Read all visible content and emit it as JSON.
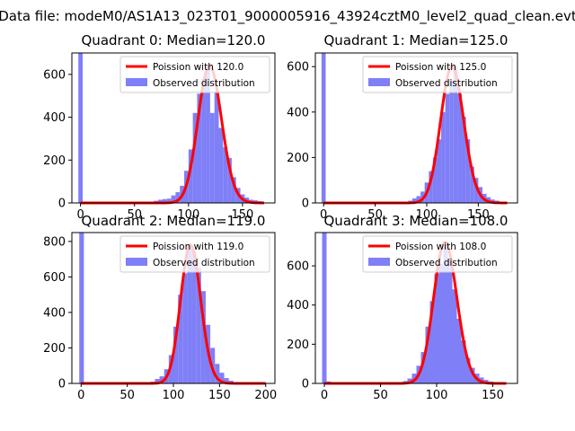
{
  "figure": {
    "suptitle": "Data file: modeM0/AS1A13_023T01_9000005916_43924cztM0_level2_quad_clean.evt"
  },
  "colors": {
    "hist_fill": "#7f7ff7",
    "poisson_line": "#ff0000",
    "axes": "#000000",
    "legend_border": "#cccccc"
  },
  "chart_data": [
    {
      "type": "bar",
      "title": "Quadrant 0: Median=120.0",
      "xlim": [
        -8,
        180
      ],
      "ylim": [
        0,
        700
      ],
      "xticks": [
        0,
        50,
        100,
        150
      ],
      "yticks": [
        0,
        200,
        400,
        600
      ],
      "legend_position": "top-right",
      "series": [
        {
          "name": "Observed distribution",
          "kind": "histogram",
          "bins": [
            {
              "x0": -2,
              "x1": 2,
              "value": 700
            },
            {
              "x0": 68,
              "x1": 72,
              "value": 10
            },
            {
              "x0": 72,
              "x1": 76,
              "value": 15
            },
            {
              "x0": 76,
              "x1": 80,
              "value": 18
            },
            {
              "x0": 80,
              "x1": 84,
              "value": 20
            },
            {
              "x0": 84,
              "x1": 88,
              "value": 35
            },
            {
              "x0": 88,
              "x1": 92,
              "value": 50
            },
            {
              "x0": 92,
              "x1": 96,
              "value": 80
            },
            {
              "x0": 96,
              "x1": 100,
              "value": 150
            },
            {
              "x0": 100,
              "x1": 104,
              "value": 250
            },
            {
              "x0": 104,
              "x1": 108,
              "value": 420
            },
            {
              "x0": 108,
              "x1": 112,
              "value": 510
            },
            {
              "x0": 112,
              "x1": 116,
              "value": 580
            },
            {
              "x0": 116,
              "x1": 120,
              "value": 640
            },
            {
              "x0": 120,
              "x1": 124,
              "value": 420
            },
            {
              "x0": 124,
              "x1": 128,
              "value": 520
            },
            {
              "x0": 128,
              "x1": 132,
              "value": 350
            },
            {
              "x0": 132,
              "x1": 136,
              "value": 260
            },
            {
              "x0": 136,
              "x1": 140,
              "value": 210
            },
            {
              "x0": 140,
              "x1": 144,
              "value": 120
            },
            {
              "x0": 144,
              "x1": 148,
              "value": 70
            },
            {
              "x0": 148,
              "x1": 152,
              "value": 40
            },
            {
              "x0": 152,
              "x1": 156,
              "value": 25
            },
            {
              "x0": 156,
              "x1": 160,
              "value": 15
            },
            {
              "x0": 160,
              "x1": 164,
              "value": 12
            },
            {
              "x0": 164,
              "x1": 168,
              "value": 8
            }
          ]
        },
        {
          "name": "Poission with 120.0",
          "kind": "poisson_line",
          "mean": 120.0,
          "x_range": [
            0,
            170
          ]
        }
      ]
    },
    {
      "type": "bar",
      "title": "Quadrant 1: Median=125.0",
      "xlim": [
        -8,
        188
      ],
      "ylim": [
        0,
        660
      ],
      "xticks": [
        0,
        50,
        100,
        150
      ],
      "yticks": [
        0,
        200,
        400,
        600
      ],
      "legend_position": "top-right",
      "series": [
        {
          "name": "Observed distribution",
          "kind": "histogram",
          "bins": [
            {
              "x0": -2,
              "x1": 2,
              "value": 660
            },
            {
              "x0": 2,
              "x1": 6,
              "value": 5
            },
            {
              "x0": 82,
              "x1": 86,
              "value": 10
            },
            {
              "x0": 86,
              "x1": 90,
              "value": 20
            },
            {
              "x0": 90,
              "x1": 94,
              "value": 30
            },
            {
              "x0": 94,
              "x1": 98,
              "value": 50
            },
            {
              "x0": 98,
              "x1": 102,
              "value": 90
            },
            {
              "x0": 102,
              "x1": 106,
              "value": 140
            },
            {
              "x0": 106,
              "x1": 110,
              "value": 200
            },
            {
              "x0": 110,
              "x1": 114,
              "value": 280
            },
            {
              "x0": 114,
              "x1": 118,
              "value": 400
            },
            {
              "x0": 118,
              "x1": 122,
              "value": 480
            },
            {
              "x0": 122,
              "x1": 126,
              "value": 540
            },
            {
              "x0": 126,
              "x1": 130,
              "value": 600
            },
            {
              "x0": 130,
              "x1": 134,
              "value": 480
            },
            {
              "x0": 134,
              "x1": 138,
              "value": 380
            },
            {
              "x0": 138,
              "x1": 142,
              "value": 280
            },
            {
              "x0": 142,
              "x1": 146,
              "value": 160
            },
            {
              "x0": 146,
              "x1": 150,
              "value": 110
            },
            {
              "x0": 150,
              "x1": 154,
              "value": 70
            },
            {
              "x0": 154,
              "x1": 158,
              "value": 40
            },
            {
              "x0": 158,
              "x1": 162,
              "value": 25
            },
            {
              "x0": 162,
              "x1": 166,
              "value": 15
            },
            {
              "x0": 166,
              "x1": 170,
              "value": 10
            },
            {
              "x0": 170,
              "x1": 174,
              "value": 5
            }
          ]
        },
        {
          "name": "Poission with 125.0",
          "kind": "poisson_line",
          "mean": 125.0,
          "x_range": [
            0,
            178
          ]
        }
      ]
    },
    {
      "type": "bar",
      "title": "Quadrant 2: Median=119.0",
      "xlim": [
        -10,
        210
      ],
      "ylim": [
        0,
        850
      ],
      "xticks": [
        0,
        50,
        100,
        150,
        200
      ],
      "yticks": [
        0,
        200,
        400,
        600,
        800
      ],
      "legend_position": "top-right",
      "series": [
        {
          "name": "Observed distribution",
          "kind": "histogram",
          "bins": [
            {
              "x0": -2,
              "x1": 3,
              "value": 850
            },
            {
              "x0": 70,
              "x1": 75,
              "value": 5
            },
            {
              "x0": 75,
              "x1": 80,
              "value": 10
            },
            {
              "x0": 80,
              "x1": 85,
              "value": 25
            },
            {
              "x0": 85,
              "x1": 90,
              "value": 40
            },
            {
              "x0": 90,
              "x1": 95,
              "value": 80
            },
            {
              "x0": 95,
              "x1": 100,
              "value": 160
            },
            {
              "x0": 100,
              "x1": 105,
              "value": 320
            },
            {
              "x0": 105,
              "x1": 110,
              "value": 500
            },
            {
              "x0": 110,
              "x1": 115,
              "value": 620
            },
            {
              "x0": 115,
              "x1": 120,
              "value": 780
            },
            {
              "x0": 120,
              "x1": 125,
              "value": 740
            },
            {
              "x0": 125,
              "x1": 130,
              "value": 650
            },
            {
              "x0": 130,
              "x1": 135,
              "value": 520
            },
            {
              "x0": 135,
              "x1": 140,
              "value": 330
            },
            {
              "x0": 140,
              "x1": 145,
              "value": 200
            },
            {
              "x0": 145,
              "x1": 150,
              "value": 110
            },
            {
              "x0": 150,
              "x1": 155,
              "value": 60
            },
            {
              "x0": 155,
              "x1": 160,
              "value": 30
            },
            {
              "x0": 160,
              "x1": 165,
              "value": 15
            },
            {
              "x0": 165,
              "x1": 170,
              "value": 8
            },
            {
              "x0": 170,
              "x1": 175,
              "value": 4
            }
          ]
        },
        {
          "name": "Poission with 119.0",
          "kind": "poisson_line",
          "mean": 119.0,
          "x_range": [
            0,
            200
          ]
        }
      ]
    },
    {
      "type": "bar",
      "title": "Quadrant 3: Median=108.0",
      "xlim": [
        -8,
        172
      ],
      "ylim": [
        0,
        770
      ],
      "xticks": [
        0,
        50,
        100,
        150
      ],
      "yticks": [
        0,
        200,
        400,
        600
      ],
      "legend_position": "top-right",
      "series": [
        {
          "name": "Observed distribution",
          "kind": "histogram",
          "bins": [
            {
              "x0": -2,
              "x1": 2,
              "value": 770
            },
            {
              "x0": 2,
              "x1": 6,
              "value": 10
            },
            {
              "x0": 66,
              "x1": 70,
              "value": 5
            },
            {
              "x0": 70,
              "x1": 74,
              "value": 12
            },
            {
              "x0": 74,
              "x1": 78,
              "value": 25
            },
            {
              "x0": 78,
              "x1": 82,
              "value": 50
            },
            {
              "x0": 82,
              "x1": 86,
              "value": 90
            },
            {
              "x0": 86,
              "x1": 90,
              "value": 160
            },
            {
              "x0": 90,
              "x1": 94,
              "value": 290
            },
            {
              "x0": 94,
              "x1": 98,
              "value": 420
            },
            {
              "x0": 98,
              "x1": 102,
              "value": 560
            },
            {
              "x0": 102,
              "x1": 106,
              "value": 610
            },
            {
              "x0": 106,
              "x1": 110,
              "value": 720
            },
            {
              "x0": 110,
              "x1": 114,
              "value": 640
            },
            {
              "x0": 114,
              "x1": 118,
              "value": 480
            },
            {
              "x0": 118,
              "x1": 122,
              "value": 330
            },
            {
              "x0": 122,
              "x1": 126,
              "value": 220
            },
            {
              "x0": 126,
              "x1": 130,
              "value": 130
            },
            {
              "x0": 130,
              "x1": 134,
              "value": 80
            },
            {
              "x0": 134,
              "x1": 138,
              "value": 50
            },
            {
              "x0": 138,
              "x1": 142,
              "value": 30
            },
            {
              "x0": 142,
              "x1": 146,
              "value": 18
            },
            {
              "x0": 146,
              "x1": 150,
              "value": 10
            },
            {
              "x0": 150,
              "x1": 154,
              "value": 6
            }
          ]
        },
        {
          "name": "Poission with 108.0",
          "kind": "poisson_line",
          "mean": 108.0,
          "x_range": [
            0,
            162
          ]
        }
      ]
    }
  ]
}
